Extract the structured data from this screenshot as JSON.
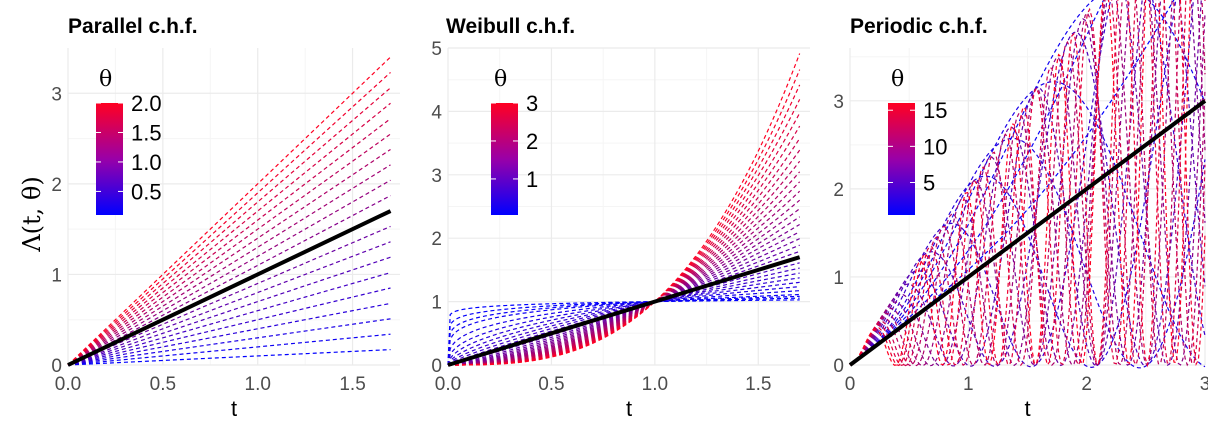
{
  "colors": {
    "low": "#0000ff",
    "high": "#ff0022",
    "grid_major": "#ebebeb",
    "grid_minor": "#f5f5f5",
    "reference_line": "#000000"
  },
  "y_axis_label": "Λ(t, θ)",
  "chart_data": [
    {
      "type": "line",
      "title": "Parallel c.h.f.",
      "xlabel": "t",
      "ylabel": "Λ(t, θ)",
      "xlim": [
        0,
        1.75
      ],
      "ylim": [
        0,
        3.5
      ],
      "x_ticks": [
        0.0,
        0.5,
        1.0,
        1.5
      ],
      "x_tick_labels": [
        "0.0",
        "0.5",
        "1.0",
        "1.5"
      ],
      "y_ticks": [
        0,
        1,
        2,
        3
      ],
      "y_tick_labels": [
        "0",
        "1",
        "2",
        "3"
      ],
      "model": "Lambda(t, theta) = theta * t",
      "x_range": [
        0,
        1.7
      ],
      "theta_values": [
        0.1,
        0.2,
        0.3,
        0.4,
        0.5,
        0.6,
        0.7,
        0.8,
        0.9,
        1.0,
        1.1,
        1.2,
        1.3,
        1.4,
        1.5,
        1.6,
        1.7,
        1.8,
        1.9,
        2.0
      ],
      "reference": {
        "x": [
          0,
          1.7
        ],
        "y": [
          0,
          1.7
        ]
      },
      "legend": {
        "title": "θ",
        "labels": [
          "2.0",
          "1.5",
          "1.0",
          "0.5"
        ],
        "values": [
          2.0,
          1.5,
          1.0,
          0.5
        ],
        "range": [
          0.1,
          2.0
        ],
        "placement": "top-left"
      },
      "line_style": "dashed",
      "grid": true
    },
    {
      "type": "line",
      "title": "Weibull c.h.f.",
      "xlabel": "t",
      "ylabel": "",
      "xlim": [
        0,
        1.75
      ],
      "ylim": [
        0,
        5
      ],
      "x_ticks": [
        0.0,
        0.5,
        1.0,
        1.5
      ],
      "x_tick_labels": [
        "0.0",
        "0.5",
        "1.0",
        "1.5"
      ],
      "y_ticks": [
        0,
        1,
        2,
        3,
        4,
        5
      ],
      "y_tick_labels": [
        "0",
        "1",
        "2",
        "3",
        "4",
        "5"
      ],
      "model": "Lambda(t, theta) = t ^ theta",
      "x_range": [
        0,
        1.7
      ],
      "theta_values": [
        0.05,
        0.1,
        0.15,
        0.2,
        0.3,
        0.4,
        0.5,
        0.6,
        0.7,
        0.8,
        0.9,
        1.1,
        1.2,
        1.3,
        1.4,
        1.5,
        1.6,
        1.7,
        1.8,
        1.9,
        2.0,
        2.1,
        2.2,
        2.3,
        2.4,
        2.5,
        2.6,
        2.7,
        2.8,
        2.9,
        3.0
      ],
      "reference": {
        "x": [
          0,
          1.7
        ],
        "y": [
          0,
          1.7
        ]
      },
      "legend": {
        "title": "θ",
        "labels": [
          "3",
          "2",
          "1"
        ],
        "values": [
          3,
          2,
          1
        ],
        "range": [
          0.05,
          3.0
        ],
        "placement": "top-left"
      },
      "line_style": "dashed",
      "grid": true
    },
    {
      "type": "line",
      "title": "Periodic c.h.f.",
      "xlabel": "t",
      "ylabel": "",
      "xlim": [
        0,
        3
      ],
      "ylim": [
        0,
        3.6
      ],
      "x_ticks": [
        0,
        1,
        2,
        3
      ],
      "x_tick_labels": [
        "0",
        "1",
        "2",
        "3"
      ],
      "y_ticks": [
        0,
        1,
        2,
        3
      ],
      "y_tick_labels": [
        "0",
        "1",
        "2",
        "3"
      ],
      "model": "Lambda(t, theta) = t + sin(theta * t) / theta - t * cos(theta * t)",
      "x_range": [
        0,
        3
      ],
      "theta_values": [
        0.5,
        1,
        1.5,
        2,
        2.5,
        3,
        4,
        5,
        6,
        7,
        8,
        9,
        10,
        11,
        12,
        13,
        14,
        15,
        16
      ],
      "reference": {
        "x": [
          0,
          3
        ],
        "y": [
          0,
          3
        ]
      },
      "legend": {
        "title": "θ",
        "labels": [
          "15",
          "10",
          "5"
        ],
        "values": [
          15,
          10,
          5
        ],
        "range": [
          0.5,
          16
        ],
        "placement": "top-left"
      },
      "line_style": "dashed",
      "grid": true
    }
  ]
}
